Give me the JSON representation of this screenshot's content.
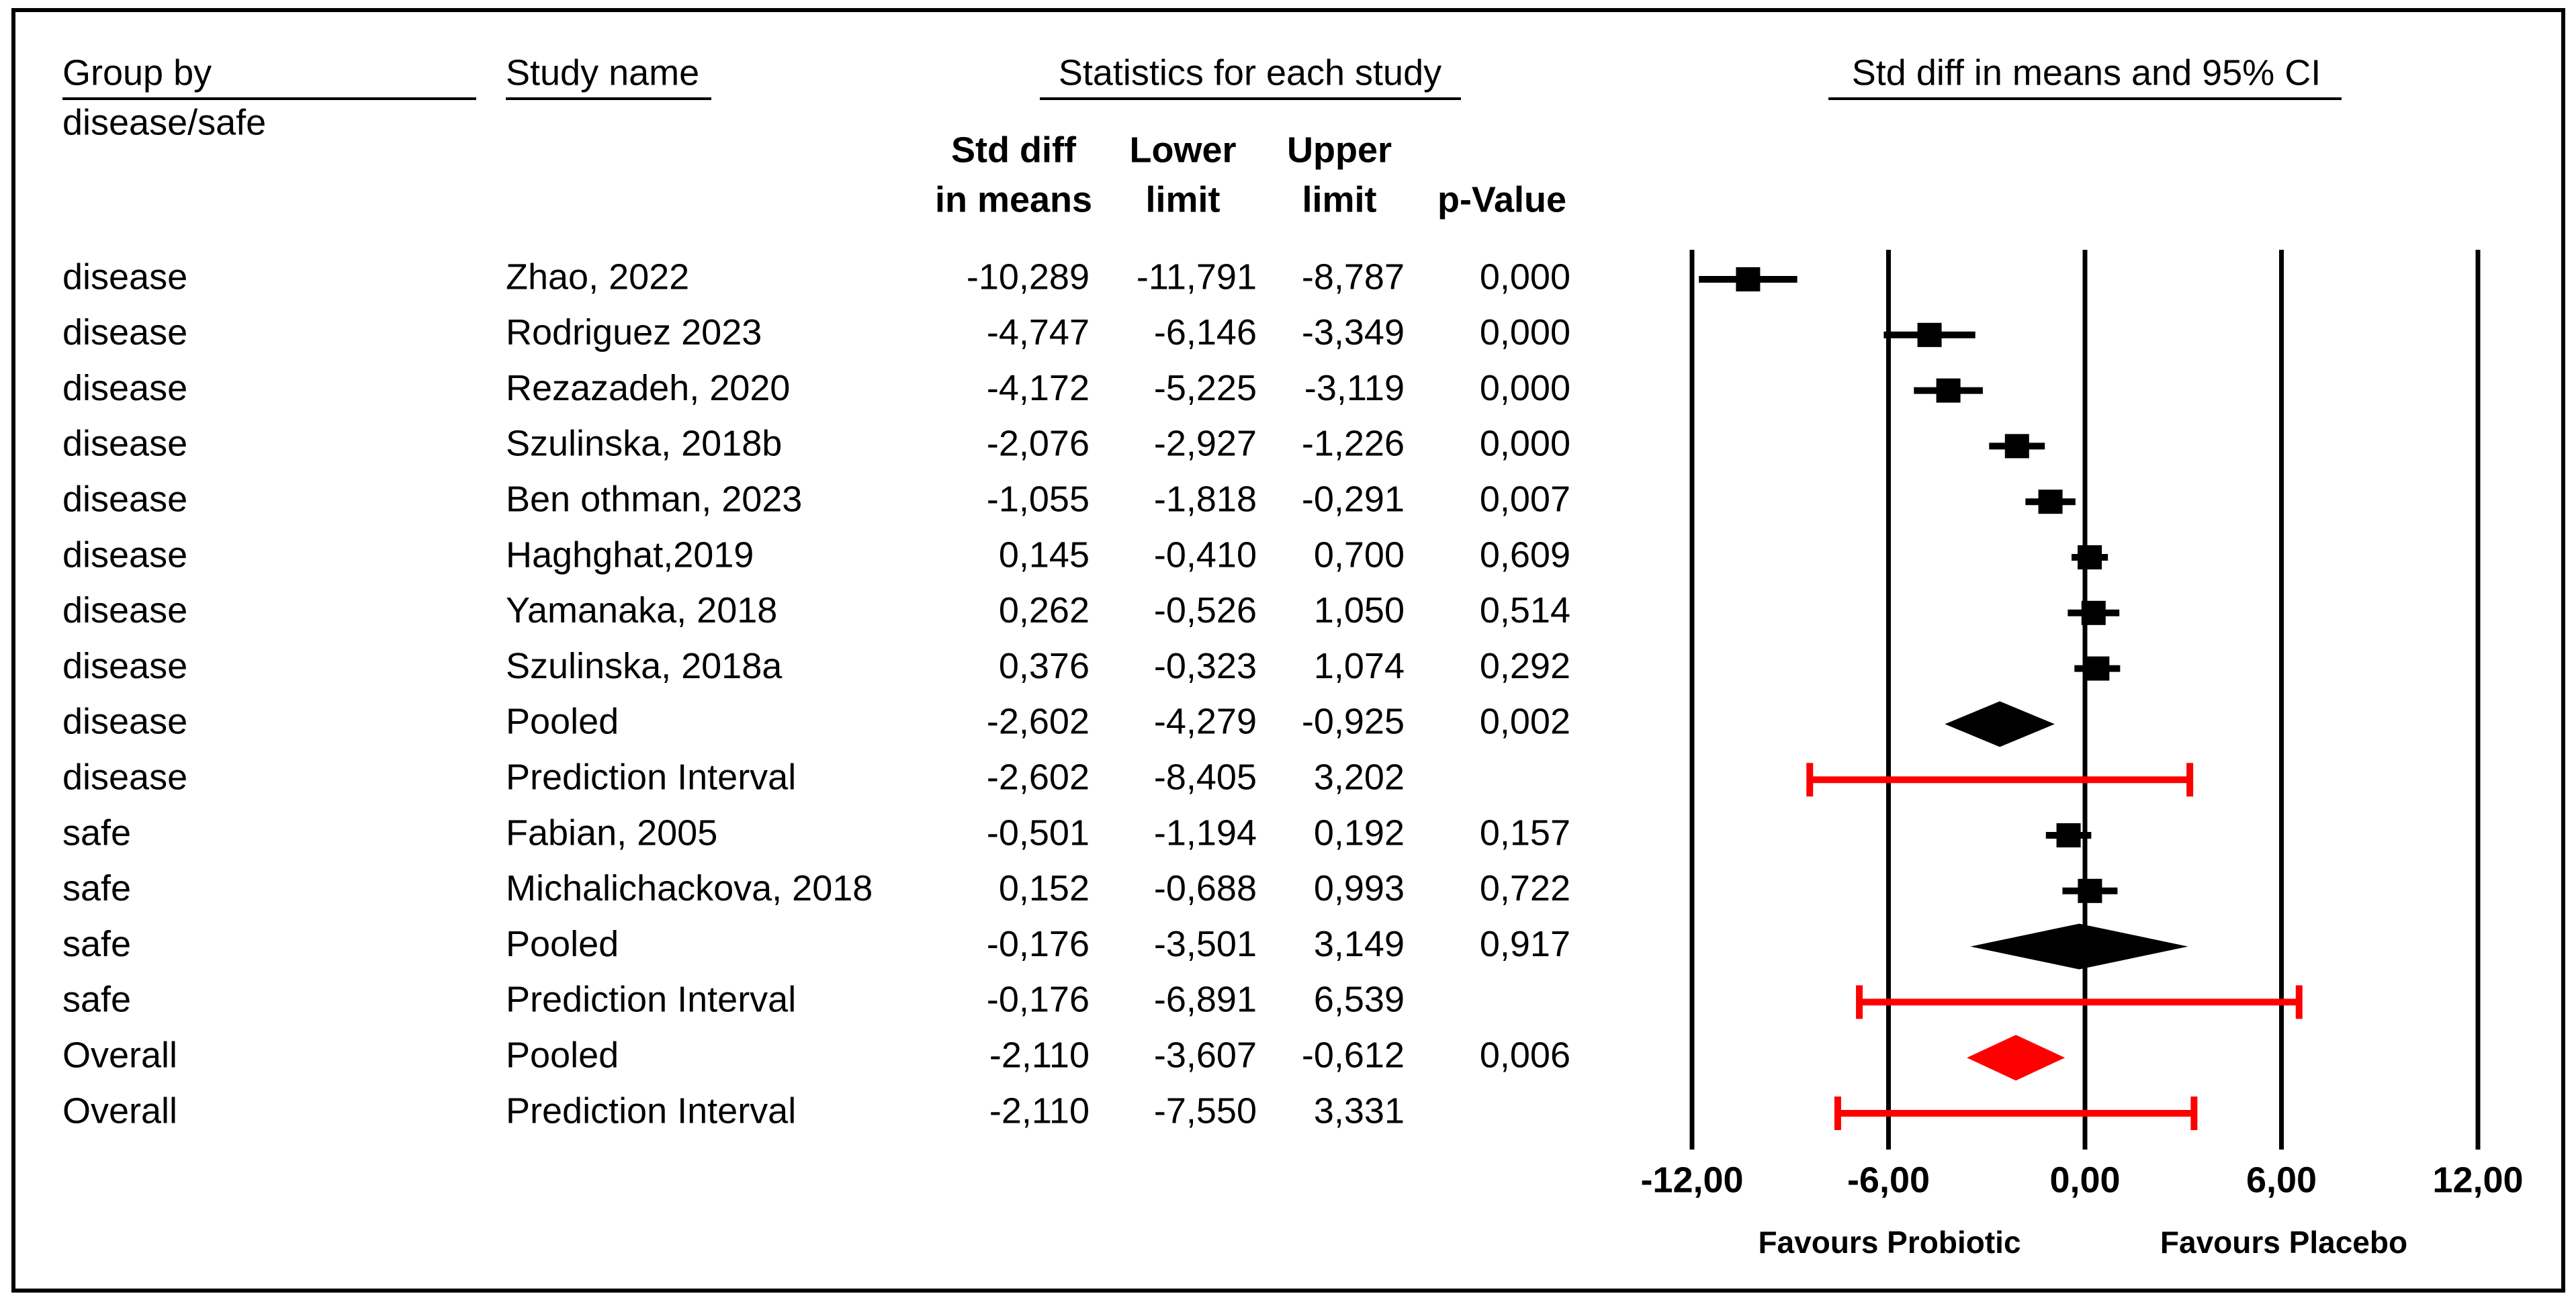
{
  "chart_data": {
    "type": "forest",
    "headers": {
      "group": "Group by",
      "group_sub": "disease/safe",
      "study": "Study name",
      "stats": "Statistics for each study",
      "plot": "Std diff in means and 95% CI",
      "estimate_1": "Std diff",
      "estimate_2": "in means",
      "lower_1": "Lower",
      "lower_2": "limit",
      "upper_1": "Upper",
      "upper_2": "limit",
      "p_value": "p-Value"
    },
    "groups": [
      "disease",
      "disease",
      "disease",
      "disease",
      "disease",
      "disease",
      "disease",
      "disease",
      "disease",
      "disease",
      "safe",
      "safe",
      "safe",
      "safe",
      "Overall",
      "Overall"
    ],
    "studies": [
      "Zhao, 2022",
      "Rodriguez 2023",
      "Rezazadeh, 2020",
      "Szulinska, 2018b",
      "Ben othman, 2023",
      "Haghghat,2019",
      "Yamanaka, 2018",
      "Szulinska, 2018a",
      "Pooled",
      "Prediction Interval",
      "Fabian, 2005",
      "Michalichackova, 2018",
      "Pooled",
      "Prediction Interval",
      "Pooled",
      "Prediction Interval"
    ],
    "estimates": [
      -10.289,
      -4.747,
      -4.172,
      -2.076,
      -1.055,
      0.145,
      0.262,
      0.376,
      -2.602,
      -2.602,
      -0.501,
      0.152,
      -0.176,
      -0.176,
      -2.11,
      -2.11
    ],
    "estimate_labels": [
      "-10,289",
      "-4,747",
      "-4,172",
      "-2,076",
      "-1,055",
      "0,145",
      "0,262",
      "0,376",
      "-2,602",
      "-2,602",
      "-0,501",
      "0,152",
      "-0,176",
      "-0,176",
      "-2,110",
      "-2,110"
    ],
    "lower": [
      -11.791,
      -6.146,
      -5.225,
      -2.927,
      -1.818,
      -0.41,
      -0.526,
      -0.323,
      -4.279,
      -8.405,
      -1.194,
      -0.688,
      -3.501,
      -6.891,
      -3.607,
      -7.55
    ],
    "lower_labels": [
      "-11,791",
      "-6,146",
      "-5,225",
      "-2,927",
      "-1,818",
      "-0,410",
      "-0,526",
      "-0,323",
      "-4,279",
      "-8,405",
      "-1,194",
      "-0,688",
      "-3,501",
      "-6,891",
      "-3,607",
      "-7,550"
    ],
    "upper": [
      -8.787,
      -3.349,
      -3.119,
      -1.226,
      -0.291,
      0.7,
      1.05,
      1.074,
      -0.925,
      3.202,
      0.192,
      0.993,
      3.149,
      6.539,
      -0.612,
      3.331
    ],
    "upper_labels": [
      "-8,787",
      "-3,349",
      "-3,119",
      "-1,226",
      "-0,291",
      "0,700",
      "1,050",
      "1,074",
      "-0,925",
      "3,202",
      "0,192",
      "0,993",
      "3,149",
      "6,539",
      "-0,612",
      "3,331"
    ],
    "p_values": [
      0.0,
      0.0,
      0.0,
      0.0,
      0.007,
      0.609,
      0.514,
      0.292,
      0.002,
      null,
      0.157,
      0.722,
      0.917,
      null,
      0.006,
      null
    ],
    "p_value_labels": [
      "0,000",
      "0,000",
      "0,000",
      "0,000",
      "0,007",
      "0,609",
      "0,514",
      "0,292",
      "0,002",
      null,
      "0,157",
      "0,722",
      "0,917",
      null,
      "0,006",
      null
    ],
    "markers": [
      "square",
      "square",
      "square",
      "square",
      "square",
      "square",
      "square",
      "square",
      "diamond",
      "interval",
      "square",
      "square",
      "diamond",
      "interval",
      "diamond",
      "interval"
    ],
    "marker_colors": [
      "#000000",
      "#000000",
      "#000000",
      "#000000",
      "#000000",
      "#000000",
      "#000000",
      "#000000",
      "#000000",
      "#ff0000",
      "#000000",
      "#000000",
      "#000000",
      "#ff0000",
      "#ff0000",
      "#ff0000"
    ],
    "xlim": [
      -12,
      12
    ],
    "xticks": [
      {
        "value": -12,
        "label": "-12,00"
      },
      {
        "value": -6,
        "label": "-6,00"
      },
      {
        "value": 0,
        "label": "0,00"
      },
      {
        "value": 6,
        "label": "6,00"
      },
      {
        "value": 12,
        "label": "12,00"
      }
    ],
    "grid": true,
    "favours_left": "Favours Probiotic",
    "favours_right": "Favours Placebo"
  }
}
